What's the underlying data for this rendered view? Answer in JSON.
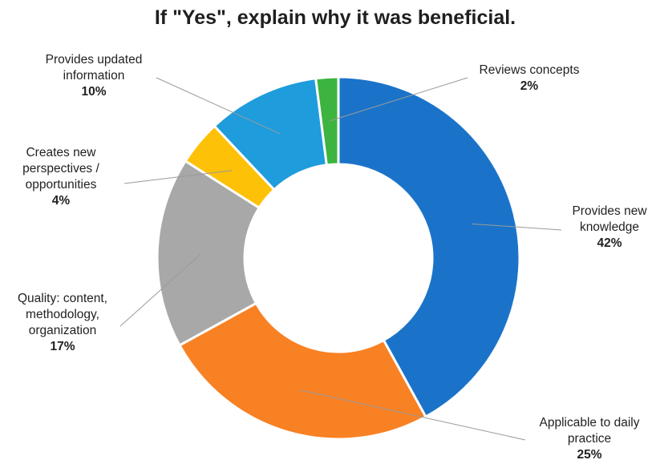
{
  "chart_data": {
    "type": "pie",
    "donut": true,
    "title": "If \"Yes\", explain why it was beneficial.",
    "legend": "none",
    "slices": [
      {
        "label": [
          "Provides new",
          "knowledge"
        ],
        "value": 42,
        "value_label": "42%",
        "color": "#1b73c9"
      },
      {
        "label": [
          "Applicable to daily",
          "practice"
        ],
        "value": 25,
        "value_label": "25%",
        "color": "#f88124"
      },
      {
        "label": [
          "Quality: content,",
          "methodology,",
          "organization"
        ],
        "value": 17,
        "value_label": "17%",
        "color": "#a8a8a8"
      },
      {
        "label": [
          "Creates new",
          "perspectives /",
          "opportunities"
        ],
        "value": 4,
        "value_label": "4%",
        "color": "#fdc108"
      },
      {
        "label": [
          "Provides updated",
          "information"
        ],
        "value": 10,
        "value_label": "10%",
        "color": "#1e9cdc"
      },
      {
        "label": [
          "Reviews concepts"
        ],
        "value": 2,
        "value_label": "2%",
        "color": "#3db43f"
      }
    ]
  }
}
